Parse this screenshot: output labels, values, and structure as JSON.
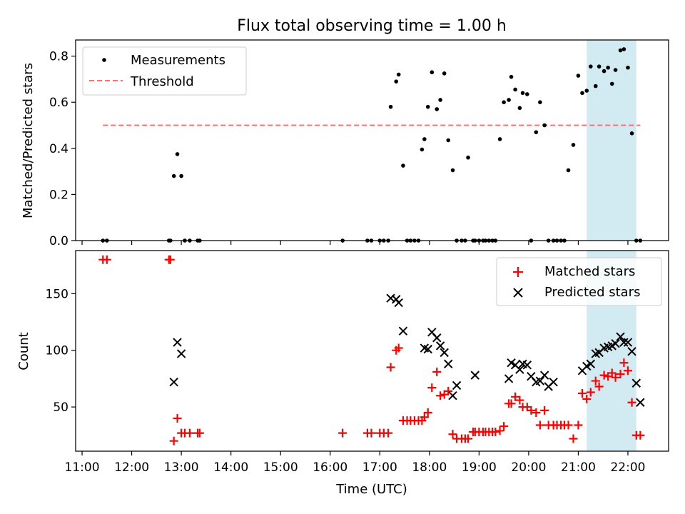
{
  "chart_data": [
    {
      "type": "scatter",
      "title": "Flux total observing time = 1.00 h",
      "xlabel": "",
      "ylabel": "Matched/Predicted stars",
      "ylim": [
        0,
        0.87
      ],
      "y_ticks": [
        "0.0",
        "0.2",
        "0.4",
        "0.6",
        "0.8"
      ],
      "x_unit": "hours UTC",
      "shaded_span_x": [
        21.17,
        22.17
      ],
      "shaded_color": "#add8e6",
      "grid": false,
      "legend_position": "upper-left",
      "series": [
        {
          "name": "Measurements",
          "marker": "dot",
          "color": "#000000",
          "x": [
            11.42,
            11.5,
            12.75,
            12.78,
            12.85,
            12.92,
            13.0,
            13.07,
            13.17,
            13.33,
            13.37,
            16.25,
            16.75,
            16.83,
            17.0,
            17.08,
            17.17,
            17.22,
            17.33,
            17.38,
            17.47,
            17.55,
            17.62,
            17.7,
            17.78,
            17.85,
            17.9,
            17.97,
            18.05,
            18.15,
            18.22,
            18.3,
            18.38,
            18.47,
            18.55,
            18.65,
            18.72,
            18.78,
            18.88,
            18.92,
            19.0,
            19.08,
            19.13,
            19.2,
            19.27,
            19.33,
            19.42,
            19.5,
            19.6,
            19.65,
            19.73,
            19.82,
            19.88,
            19.97,
            20.05,
            20.15,
            20.23,
            20.32,
            20.4,
            20.5,
            20.57,
            20.65,
            20.72,
            20.8,
            20.9,
            21.0,
            21.08,
            21.17,
            21.25,
            21.35,
            21.42,
            21.52,
            21.6,
            21.68,
            21.75,
            21.85,
            21.92,
            22.0,
            22.08,
            22.17,
            22.25
          ],
          "y": [
            0,
            0,
            0,
            0,
            0.28,
            0.375,
            0.28,
            0,
            0,
            0,
            0,
            0,
            0,
            0,
            0,
            0,
            0,
            0.58,
            0.69,
            0.72,
            0.325,
            0,
            0,
            0,
            0,
            0.395,
            0.44,
            0.58,
            0.73,
            0.57,
            0.61,
            0.725,
            0.435,
            0.305,
            0,
            0,
            0,
            0.36,
            0,
            0,
            0,
            0,
            0,
            0,
            0,
            0,
            0.44,
            0.6,
            0.61,
            0.71,
            0.655,
            0.575,
            0.64,
            0.635,
            0,
            0.47,
            0.6,
            0.5,
            0,
            0,
            0,
            0,
            0,
            0.305,
            0.415,
            0.715,
            0.64,
            0.65,
            0.755,
            0.67,
            0.755,
            0.735,
            0.75,
            0.68,
            0.74,
            0.825,
            0.83,
            0.75,
            0.465,
            0,
            0
          ]
        },
        {
          "name": "Threshold",
          "style": "dashed",
          "color": "#ff7070",
          "x": [
            11.42,
            22.25
          ],
          "y": [
            0.5,
            0.5
          ]
        }
      ]
    },
    {
      "type": "scatter",
      "title": "",
      "xlabel": "Time (UTC)",
      "ylabel": "Count",
      "ylim": [
        11,
        188
      ],
      "y_ticks": [
        "50",
        "100",
        "150"
      ],
      "x_ticks": [
        "11:00",
        "12:00",
        "13:00",
        "14:00",
        "15:00",
        "16:00",
        "17:00",
        "18:00",
        "19:00",
        "20:00",
        "21:00",
        "22:00"
      ],
      "xlim": [
        10.87,
        22.82
      ],
      "shaded_span_x": [
        21.17,
        22.17
      ],
      "shaded_color": "#add8e6",
      "grid": false,
      "legend_position": "upper-right",
      "series": [
        {
          "name": "Matched stars",
          "marker": "plus",
          "color": "#ff0000",
          "x": [
            11.42,
            11.5,
            12.75,
            12.78,
            12.85,
            12.92,
            13.0,
            13.07,
            13.17,
            13.33,
            13.37,
            16.25,
            16.75,
            16.83,
            17.0,
            17.08,
            17.17,
            17.22,
            17.33,
            17.38,
            17.47,
            17.55,
            17.62,
            17.7,
            17.78,
            17.85,
            17.9,
            17.97,
            18.05,
            18.15,
            18.22,
            18.3,
            18.38,
            18.47,
            18.55,
            18.65,
            18.72,
            18.78,
            18.88,
            18.92,
            19.0,
            19.08,
            19.13,
            19.2,
            19.27,
            19.33,
            19.42,
            19.5,
            19.6,
            19.65,
            19.73,
            19.82,
            19.88,
            19.97,
            20.05,
            20.15,
            20.23,
            20.32,
            20.4,
            20.5,
            20.57,
            20.65,
            20.72,
            20.8,
            20.9,
            21.0,
            21.08,
            21.17,
            21.25,
            21.35,
            21.42,
            21.52,
            21.6,
            21.68,
            21.75,
            21.85,
            21.92,
            22.0,
            22.08,
            22.17,
            22.25
          ],
          "y": [
            180,
            180,
            180,
            180,
            20,
            40,
            27,
            27,
            27,
            27,
            27,
            27,
            27,
            27,
            27,
            27,
            27,
            85,
            100,
            102,
            38,
            38,
            38,
            38,
            38,
            38,
            41,
            45,
            67,
            81,
            60,
            61,
            64,
            26,
            22,
            22,
            22,
            22,
            28,
            28,
            28,
            28,
            28,
            28,
            28,
            28,
            29,
            33,
            53,
            53,
            59,
            56,
            50,
            50,
            47,
            45,
            34,
            47,
            34,
            34,
            34,
            34,
            34,
            34,
            22,
            34,
            62,
            57,
            63,
            73,
            68,
            78,
            77,
            80,
            76,
            79,
            89,
            82,
            54,
            25,
            25
          ]
        },
        {
          "name": "Predicted stars",
          "marker": "x",
          "color": "#000000",
          "x": [
            12.85,
            12.92,
            13.0,
            17.22,
            17.33,
            17.38,
            17.47,
            17.9,
            17.97,
            18.05,
            18.15,
            18.22,
            18.3,
            18.38,
            18.47,
            18.55,
            18.92,
            19.6,
            19.65,
            19.73,
            19.82,
            19.88,
            19.97,
            20.05,
            20.15,
            20.23,
            20.32,
            20.4,
            20.5,
            21.08,
            21.17,
            21.25,
            21.35,
            21.42,
            21.52,
            21.6,
            21.68,
            21.75,
            21.85,
            21.92,
            22.0,
            22.08,
            22.17,
            22.25
          ],
          "y": [
            72,
            107,
            97,
            146,
            145,
            142,
            117,
            102,
            101,
            116,
            111,
            104,
            98,
            88,
            60,
            69,
            78,
            75,
            89,
            87,
            83,
            88,
            87,
            77,
            72,
            73,
            78,
            68,
            72,
            82,
            86,
            88,
            97,
            98,
            102,
            103,
            104,
            106,
            112,
            107,
            107,
            99,
            71,
            54
          ]
        }
      ]
    }
  ]
}
